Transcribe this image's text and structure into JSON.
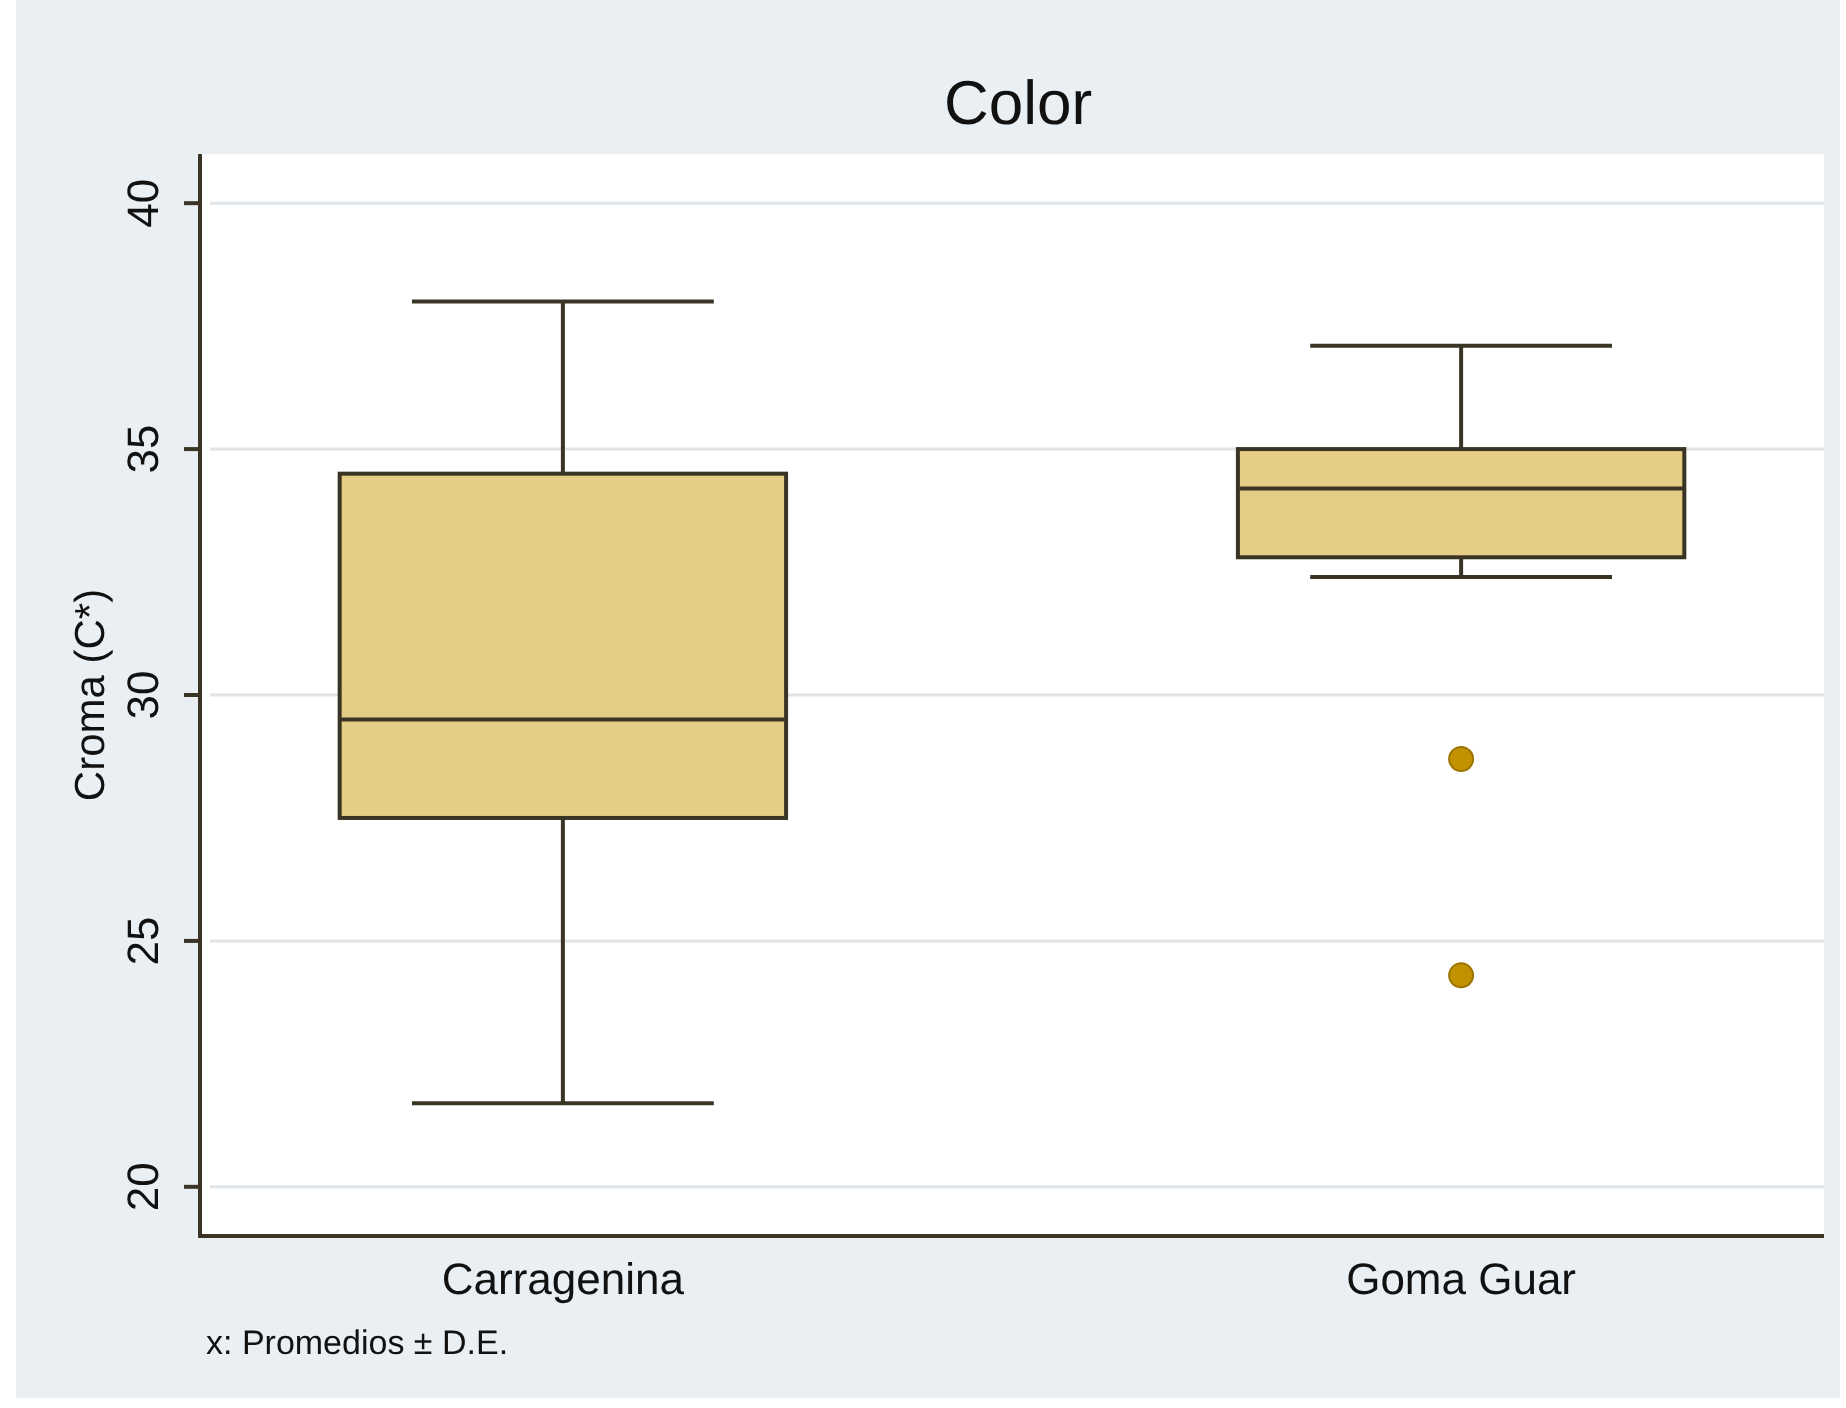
{
  "chart_data": {
    "type": "box",
    "title": "Color",
    "ylabel": "Croma (C*)",
    "categories": [
      "Carragenina",
      "Goma Guar"
    ],
    "boxes": [
      {
        "low": 21.7,
        "q1": 27.5,
        "median": 29.5,
        "q3": 34.5,
        "high": 38.0
      },
      {
        "low": 32.4,
        "q1": 32.8,
        "median": 34.2,
        "q3": 35.0,
        "high": 37.1,
        "outliers": [
          28.7,
          24.3
        ]
      }
    ],
    "color": "#e6cd85",
    "ylim": [
      19,
      41
    ],
    "yticks": [
      20,
      25,
      30,
      35,
      40
    ],
    "grid": "y",
    "annotations": [
      "x: Promedios ± D.E."
    ]
  }
}
